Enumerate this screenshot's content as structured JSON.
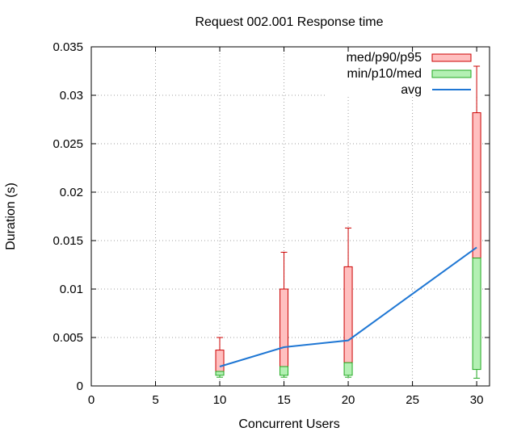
{
  "chart_data": {
    "type": "box",
    "title": "Request 002.001 Response time",
    "xlabel": "Concurrent Users",
    "ylabel": "Duration (s)",
    "xlim": [
      0,
      31
    ],
    "ylim": [
      0,
      0.035
    ],
    "xticks": [
      0,
      5,
      10,
      15,
      20,
      25,
      30
    ],
    "yticks": [
      0,
      0.005,
      0.01,
      0.015,
      0.02,
      0.025,
      0.03,
      0.035
    ],
    "xtick_labels": [
      "0",
      "5",
      "10",
      "15",
      "20",
      "25",
      "30"
    ],
    "ytick_labels": [
      "0",
      "0.005",
      "0.01",
      "0.015",
      "0.02",
      "0.025",
      "0.03",
      "0.035"
    ],
    "grid": true,
    "legend_position": "top-right",
    "legend": [
      {
        "label": "med/p90/p95",
        "kind": "box",
        "fill": "#ffbfbf",
        "stroke": "#cc0000"
      },
      {
        "label": "min/p10/med",
        "kind": "box",
        "fill": "#b3f0b3",
        "stroke": "#22aa22"
      },
      {
        "label": "avg",
        "kind": "line",
        "stroke": "#1f77d4"
      }
    ],
    "x": [
      10,
      15,
      20,
      30
    ],
    "min": [
      0.0009,
      0.0009,
      0.0009,
      0.0008
    ],
    "p10": [
      0.0011,
      0.0011,
      0.0011,
      0.0017
    ],
    "med": [
      0.0015,
      0.002,
      0.0024,
      0.0132
    ],
    "p90": [
      0.0037,
      0.01,
      0.0123,
      0.0282
    ],
    "p95": [
      0.005,
      0.0138,
      0.0163,
      0.033
    ],
    "avg": [
      0.002,
      0.004,
      0.0047,
      0.0143
    ]
  }
}
